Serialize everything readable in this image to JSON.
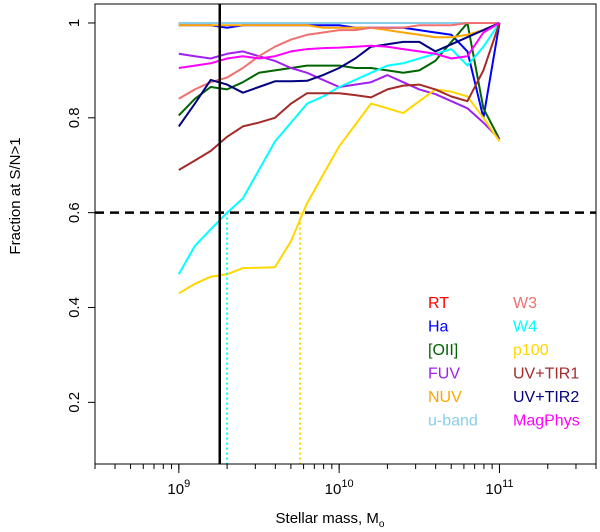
{
  "chart_data": {
    "type": "line",
    "xlabel": "Stellar mass, M",
    "xlabel_sub": "o",
    "ylabel": "Fraction at S/N>1",
    "x_scale": "log",
    "xlim": [
      300000000,
      400000000000
    ],
    "ylim": [
      0.07,
      1.04
    ],
    "x_ticks": [
      {
        "value": 1000000000,
        "base": "10",
        "exp": "9"
      },
      {
        "value": 10000000000,
        "base": "10",
        "exp": "10"
      },
      {
        "value": 100000000000,
        "base": "10",
        "exp": "11"
      }
    ],
    "y_ticks": [
      {
        "value": 0.2,
        "label": "0.2"
      },
      {
        "value": 0.4,
        "label": "0.4"
      },
      {
        "value": 0.6,
        "label": "0.6"
      },
      {
        "value": 0.8,
        "label": "0.8"
      },
      {
        "value": 1.0,
        "label": "1"
      }
    ],
    "x": [
      1000000000,
      1260000000,
      1580000000,
      2000000000,
      2510000000,
      3160000000,
      3980000000,
      5010000000,
      6310000000,
      7940000000,
      10000000000,
      12600000000,
      15800000000,
      20000000000,
      25100000000,
      31600000000,
      39800000000,
      50100000000,
      63100000000,
      79400000000,
      100000000000
    ],
    "series": [
      {
        "name": "RT",
        "color": "#ff0000",
        "values": [
          1.0,
          1.0,
          1.0,
          1.0,
          1.0,
          1.0,
          1.0,
          1.0,
          1.0,
          1.0,
          1.0,
          1.0,
          1.0,
          1.0,
          1.0,
          1.0,
          1.0,
          1.0,
          1.0,
          1.0,
          1.0
        ]
      },
      {
        "name": "Ha",
        "color": "#0000ff",
        "values": [
          0.995,
          0.995,
          0.995,
          0.99,
          0.995,
          0.995,
          0.995,
          0.995,
          0.995,
          0.995,
          0.995,
          0.99,
          0.99,
          0.99,
          0.99,
          0.985,
          0.98,
          0.975,
          0.94,
          0.8,
          1.0
        ]
      },
      {
        "name": "[OII]",
        "color": "#006400",
        "values": [
          0.805,
          0.84,
          0.865,
          0.86,
          0.875,
          0.895,
          0.9,
          0.905,
          0.91,
          0.91,
          0.91,
          0.905,
          0.905,
          0.9,
          0.895,
          0.9,
          0.92,
          0.96,
          1.0,
          0.82,
          0.755
        ]
      },
      {
        "name": "FUV",
        "color": "#a020f0",
        "values": [
          0.935,
          0.93,
          0.925,
          0.935,
          0.94,
          0.93,
          0.92,
          0.905,
          0.895,
          0.88,
          0.865,
          0.87,
          0.875,
          0.89,
          0.875,
          0.86,
          0.85,
          0.835,
          0.82,
          0.79,
          0.755
        ]
      },
      {
        "name": "NUV",
        "color": "#ffa500",
        "values": [
          0.995,
          0.995,
          0.995,
          0.995,
          0.995,
          0.995,
          0.995,
          0.995,
          0.995,
          0.99,
          0.99,
          0.99,
          0.99,
          0.985,
          0.98,
          0.975,
          0.97,
          0.97,
          0.975,
          0.985,
          1.0
        ]
      },
      {
        "name": "u-band",
        "color": "#87ceeb",
        "values": [
          1.0,
          1.0,
          1.0,
          1.0,
          1.0,
          1.0,
          1.0,
          1.0,
          1.0,
          1.0,
          1.0,
          1.0,
          1.0,
          1.0,
          1.0,
          1.0,
          1.0,
          1.0,
          1.0,
          1.0,
          1.0
        ]
      },
      {
        "name": "W3",
        "color": "#f07070",
        "values": [
          0.84,
          0.86,
          0.875,
          0.885,
          0.905,
          0.93,
          0.95,
          0.965,
          0.975,
          0.98,
          0.985,
          0.985,
          0.99,
          0.99,
          0.99,
          0.995,
          0.995,
          0.995,
          1.0,
          1.0,
          1.0
        ]
      },
      {
        "name": "W4",
        "color": "#00ffff",
        "values": [
          0.47,
          0.53,
          0.565,
          0.6,
          0.63,
          0.69,
          0.75,
          0.79,
          0.83,
          0.845,
          0.865,
          0.88,
          0.895,
          0.91,
          0.915,
          0.925,
          0.935,
          0.945,
          0.91,
          0.95,
          1.0
        ]
      },
      {
        "name": "p100",
        "color": "#ffd700",
        "values": [
          0.43,
          0.45,
          0.465,
          0.47,
          0.483,
          0.484,
          0.485,
          0.54,
          0.62,
          0.68,
          0.74,
          0.785,
          0.83,
          0.82,
          0.81,
          0.835,
          0.86,
          0.855,
          0.845,
          0.8,
          0.75
        ]
      },
      {
        "name": "UV+TIR1",
        "color": "#a52a2a",
        "values": [
          0.69,
          0.71,
          0.73,
          0.76,
          0.782,
          0.79,
          0.8,
          0.83,
          0.852,
          0.852,
          0.852,
          0.848,
          0.843,
          0.86,
          0.868,
          0.87,
          0.86,
          0.845,
          0.835,
          0.9,
          1.0
        ]
      },
      {
        "name": "UV+TIR2",
        "color": "#000080",
        "values": [
          0.782,
          0.83,
          0.88,
          0.87,
          0.853,
          0.865,
          0.877,
          0.877,
          0.878,
          0.89,
          0.905,
          0.925,
          0.95,
          0.955,
          0.96,
          0.96,
          0.94,
          0.955,
          0.97,
          0.985,
          1.0
        ]
      },
      {
        "name": "MagPhys",
        "color": "#ff00ff",
        "values": [
          0.905,
          0.91,
          0.915,
          0.925,
          0.93,
          0.925,
          0.93,
          0.94,
          0.945,
          0.947,
          0.948,
          0.95,
          0.952,
          0.95,
          0.945,
          0.94,
          0.935,
          0.925,
          0.93,
          0.98,
          1.0
        ]
      }
    ],
    "reference_lines": [
      {
        "kind": "horizontal",
        "value": 0.6,
        "style": "dashed",
        "color": "#000000"
      },
      {
        "kind": "vertical",
        "value": 1800000000,
        "style": "solid",
        "color": "#000000"
      },
      {
        "kind": "vertical",
        "value": 2000000000,
        "style": "dotted",
        "color": "#00ffff",
        "y_top": 0.6
      },
      {
        "kind": "vertical",
        "value": 5700000000,
        "style": "dotted",
        "color": "#ffd700",
        "y_top": 0.6
      }
    ],
    "legend": {
      "position": "bottom-right",
      "columns": 2,
      "order": [
        "RT",
        "Ha",
        "[OII]",
        "FUV",
        "NUV",
        "u-band",
        "W3",
        "W4",
        "p100",
        "UV+TIR1",
        "UV+TIR2",
        "MagPhys"
      ]
    },
    "grid": false
  }
}
